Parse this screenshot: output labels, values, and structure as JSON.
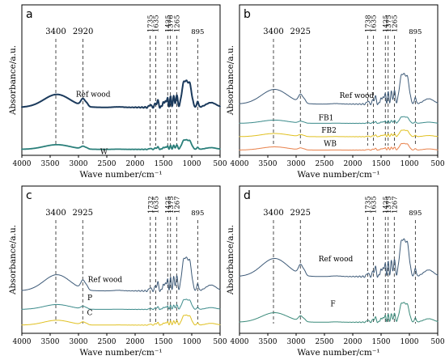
{
  "chart_data": [
    {
      "type": "line",
      "panel": "a",
      "xlabel": "Wave number/cm⁻¹",
      "ylabel": "Absorbance/a.u.",
      "xlim": [
        4000,
        500
      ],
      "x_ticks": [
        4000,
        3500,
        3000,
        2500,
        2000,
        1500,
        1000,
        500
      ],
      "peaks": [
        3400,
        2920,
        1735,
        1635,
        1425,
        1376,
        1265,
        895
      ],
      "series": [
        {
          "name": "Ref wood",
          "color": "#1b3a5c",
          "width": 2.0,
          "offset": 2.5,
          "scale": 1.25
        },
        {
          "name": "W",
          "color": "#2a7f7a",
          "width": 1.8,
          "offset": 0.3,
          "scale": 0.45
        }
      ]
    },
    {
      "type": "line",
      "panel": "b",
      "xlabel": "Wave number/cm⁻¹",
      "ylabel": "Absorbance/a.u.",
      "xlim": [
        4000,
        500
      ],
      "x_ticks": [
        4000,
        3500,
        3000,
        2500,
        2000,
        1500,
        1000,
        500
      ],
      "peaks": [
        3400,
        2925,
        1738,
        1635,
        1425,
        1375,
        1265,
        895
      ],
      "series": [
        {
          "name": "Ref wood",
          "color": "#3d5a78",
          "width": 1.0,
          "offset": 3.0,
          "scale": 1.6
        },
        {
          "name": "FB1",
          "color": "#3a8a8a",
          "width": 1.0,
          "offset": 1.9,
          "scale": 0.35
        },
        {
          "name": "FB2",
          "color": "#e0c020",
          "width": 1.0,
          "offset": 1.1,
          "scale": 0.35
        },
        {
          "name": "WB",
          "color": "#e8804a",
          "width": 1.0,
          "offset": 0.3,
          "scale": 0.35
        }
      ]
    },
    {
      "type": "line",
      "panel": "c",
      "xlabel": "Wave number/cm⁻¹",
      "ylabel": "Absorbance/a.u.",
      "xlim": [
        4000,
        500
      ],
      "x_ticks": [
        4000,
        3500,
        3000,
        2500,
        2000,
        1500,
        1000,
        500
      ],
      "peaks": [
        3400,
        2925,
        1732,
        1635,
        1425,
        1375,
        1267,
        895
      ],
      "series": [
        {
          "name": "Ref wood",
          "color": "#3d5a78",
          "width": 1.0,
          "offset": 2.1,
          "scale": 1.5
        },
        {
          "name": "P",
          "color": "#3a8a8a",
          "width": 1.0,
          "offset": 1.2,
          "scale": 0.45
        },
        {
          "name": "C",
          "color": "#e0c020",
          "width": 1.0,
          "offset": 0.4,
          "scale": 0.45
        }
      ]
    },
    {
      "type": "line",
      "panel": "d",
      "xlabel": "Wave number/cm⁻¹",
      "ylabel": "Absorbance/a.u.",
      "xlim": [
        4000,
        500
      ],
      "x_ticks": [
        4000,
        3500,
        3000,
        2500,
        2000,
        1500,
        1000,
        500
      ],
      "peaks": [
        3400,
        2925,
        1735,
        1635,
        1425,
        1375,
        1267,
        895
      ],
      "series": [
        {
          "name": "Ref wood",
          "color": "#3d5a78",
          "width": 1.0,
          "offset": 3.2,
          "scale": 1.9
        },
        {
          "name": "F",
          "color": "#3a8a7a",
          "width": 1.0,
          "offset": 0.6,
          "scale": 1.0
        }
      ]
    }
  ]
}
